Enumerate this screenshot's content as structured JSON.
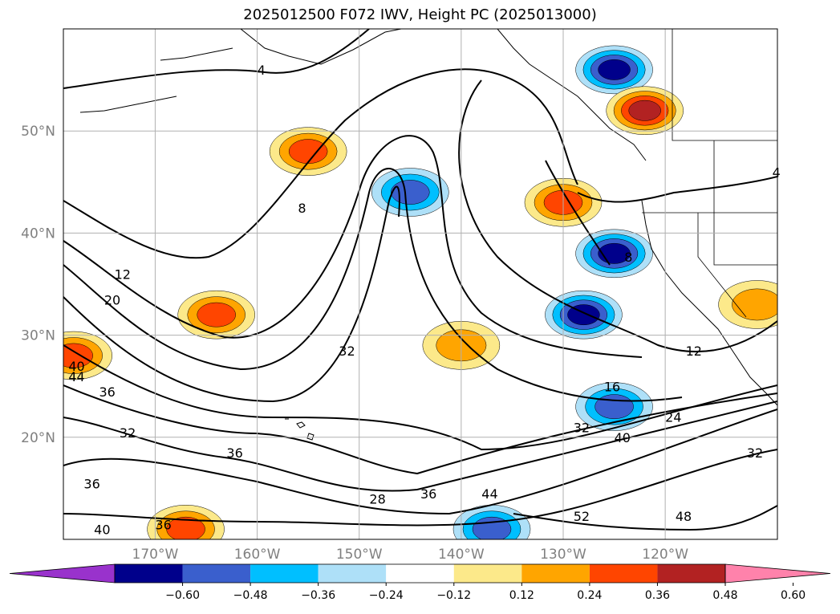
{
  "chart_data": {
    "type": "map-contour",
    "title": "2025012500 F072 IWV, Height PC (2025013000)",
    "map": {
      "lon_range": [
        -179,
        -109
      ],
      "lat_range": [
        10,
        60
      ],
      "projection": "cylindrical",
      "grid": true,
      "lat_ticks": [
        "50°N",
        "40°N",
        "30°N",
        "20°N"
      ],
      "lat_tick_values": [
        50,
        40,
        30,
        20
      ],
      "lon_ticks": [
        "170°W",
        "160°W",
        "150°W",
        "140°W",
        "130°W",
        "120°W"
      ],
      "lon_tick_values": [
        -170,
        -160,
        -150,
        -140,
        -130,
        -120
      ]
    },
    "filled_field": {
      "name": "IWV",
      "levels": [
        -0.6,
        -0.48,
        -0.36,
        -0.24,
        -0.12,
        0.12,
        0.24,
        0.36,
        0.48,
        0.6
      ],
      "colors": [
        "#9932cc",
        "#00008b",
        "#3a5fcd",
        "#00bfff",
        "#aee0f8",
        "#ffffff",
        "#fce98a",
        "#ffa500",
        "#ff4500",
        "#b22222",
        "#ff82ab"
      ],
      "blobs": [
        {
          "sign": "negative",
          "peak": -0.55,
          "lon": -128,
          "lat": 32
        },
        {
          "sign": "negative",
          "peak": -0.5,
          "lon": -125,
          "lat": 38
        },
        {
          "sign": "negative",
          "peak": -0.48,
          "lon": -125,
          "lat": 56
        },
        {
          "sign": "negative",
          "peak": -0.36,
          "lon": -145,
          "lat": 44
        },
        {
          "sign": "negative",
          "peak": -0.4,
          "lon": -125,
          "lat": 23
        },
        {
          "sign": "negative",
          "peak": -0.36,
          "lon": -137,
          "lat": 11
        },
        {
          "sign": "positive",
          "peak": 0.48,
          "lon": -122,
          "lat": 52
        },
        {
          "sign": "positive",
          "peak": 0.4,
          "lon": -130,
          "lat": 43
        },
        {
          "sign": "positive",
          "peak": 0.36,
          "lon": -164,
          "lat": 32
        },
        {
          "sign": "positive",
          "peak": 0.36,
          "lon": -155,
          "lat": 48
        },
        {
          "sign": "positive",
          "peak": 0.36,
          "lon": -178,
          "lat": 28
        },
        {
          "sign": "positive",
          "peak": 0.3,
          "lon": -140,
          "lat": 29
        },
        {
          "sign": "positive",
          "peak": 0.3,
          "lon": -111,
          "lat": 33
        },
        {
          "sign": "positive",
          "peak": 0.36,
          "lon": -167,
          "lat": 11
        }
      ]
    },
    "contour_field": {
      "name": "Height PC",
      "contour_labels": [
        {
          "text": "4",
          "lon": -160,
          "lat": 55.5
        },
        {
          "text": "8",
          "lon": -156,
          "lat": 42
        },
        {
          "text": "12",
          "lon": -174,
          "lat": 35.5
        },
        {
          "text": "20",
          "lon": -175,
          "lat": 33
        },
        {
          "text": "32",
          "lon": -152,
          "lat": 28
        },
        {
          "text": "40",
          "lon": -178.5,
          "lat": 26.5
        },
        {
          "text": "44",
          "lon": -178.5,
          "lat": 25.5
        },
        {
          "text": "36",
          "lon": -175.5,
          "lat": 24
        },
        {
          "text": "32",
          "lon": -173.5,
          "lat": 20
        },
        {
          "text": "36",
          "lon": -163,
          "lat": 18
        },
        {
          "text": "36",
          "lon": -177,
          "lat": 15
        },
        {
          "text": "28",
          "lon": -149,
          "lat": 13.5
        },
        {
          "text": "36",
          "lon": -144,
          "lat": 14
        },
        {
          "text": "44",
          "lon": -138,
          "lat": 14
        },
        {
          "text": "40",
          "lon": -176,
          "lat": 10.5
        },
        {
          "text": "36",
          "lon": -170,
          "lat": 11
        },
        {
          "text": "52",
          "lon": -129,
          "lat": 11.8
        },
        {
          "text": "48",
          "lon": -119,
          "lat": 11.8
        },
        {
          "text": "16",
          "lon": -126,
          "lat": 24.5
        },
        {
          "text": "24",
          "lon": -120,
          "lat": 21.5
        },
        {
          "text": "32",
          "lon": -129,
          "lat": 20.5
        },
        {
          "text": "40",
          "lon": -125,
          "lat": 19.5
        },
        {
          "text": "12",
          "lon": -118,
          "lat": 28
        },
        {
          "text": "8",
          "lon": -124,
          "lat": 37.2
        },
        {
          "text": "32",
          "lon": -112,
          "lat": 18
        },
        {
          "text": "4",
          "lon": -109.5,
          "lat": 45.5
        }
      ]
    },
    "colorbar": {
      "orientation": "horizontal",
      "extend": "both",
      "tick_labels": [
        "−0.60",
        "−0.48",
        "−0.36",
        "−0.24",
        "−0.12",
        "0.12",
        "0.24",
        "0.36",
        "0.48",
        "0.60"
      ]
    }
  }
}
